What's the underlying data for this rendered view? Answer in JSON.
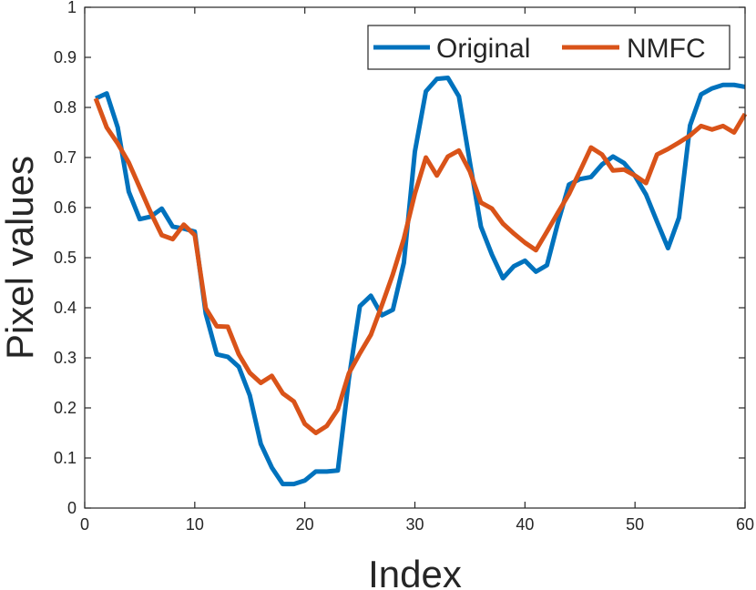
{
  "chart_data": {
    "type": "line",
    "title": "",
    "xlabel": "Index",
    "ylabel": "Pixel values",
    "xlim": [
      0,
      60
    ],
    "ylim": [
      0,
      1
    ],
    "xticks": [
      "0",
      "10",
      "20",
      "30",
      "40",
      "50",
      "60"
    ],
    "yticks": [
      "0",
      "0.1",
      "0.2",
      "0.3",
      "0.4",
      "0.5",
      "0.6",
      "0.7",
      "0.8",
      "0.9",
      "1"
    ],
    "grid": false,
    "legend_position": "top-right",
    "x": [
      1,
      2,
      3,
      4,
      5,
      6,
      7,
      8,
      9,
      10,
      11,
      12,
      13,
      14,
      15,
      16,
      17,
      18,
      19,
      20,
      21,
      22,
      23,
      24,
      25,
      26,
      27,
      28,
      29,
      30,
      31,
      32,
      33,
      34,
      35,
      36,
      37,
      38,
      39,
      40,
      41,
      42,
      43,
      44,
      45,
      46,
      47,
      48,
      49,
      50,
      51,
      52,
      53,
      54,
      55,
      56,
      57,
      58,
      59,
      60
    ],
    "series": [
      {
        "name": "Original",
        "color": "#0072BD",
        "values": [
          0.818,
          0.828,
          0.76,
          0.632,
          0.577,
          0.582,
          0.598,
          0.562,
          0.558,
          0.552,
          0.388,
          0.307,
          0.302,
          0.282,
          0.225,
          0.128,
          0.081,
          0.048,
          0.048,
          0.055,
          0.073,
          0.073,
          0.075,
          0.258,
          0.403,
          0.424,
          0.385,
          0.396,
          0.49,
          0.712,
          0.832,
          0.857,
          0.859,
          0.822,
          0.69,
          0.562,
          0.506,
          0.459,
          0.483,
          0.494,
          0.472,
          0.485,
          0.57,
          0.646,
          0.657,
          0.661,
          0.686,
          0.702,
          0.689,
          0.663,
          0.626,
          0.572,
          0.519,
          0.58,
          0.764,
          0.826,
          0.838,
          0.845,
          0.845,
          0.841
        ]
      },
      {
        "name": "NMFC",
        "color": "#D95319",
        "values": [
          0.818,
          0.76,
          0.728,
          0.69,
          0.64,
          0.59,
          0.545,
          0.537,
          0.566,
          0.545,
          0.399,
          0.363,
          0.362,
          0.307,
          0.27,
          0.25,
          0.264,
          0.229,
          0.213,
          0.168,
          0.15,
          0.164,
          0.197,
          0.269,
          0.309,
          0.346,
          0.405,
          0.467,
          0.538,
          0.628,
          0.7,
          0.664,
          0.702,
          0.714,
          0.672,
          0.61,
          0.598,
          0.568,
          0.548,
          0.53,
          0.515,
          0.552,
          0.59,
          0.627,
          0.673,
          0.72,
          0.706,
          0.674,
          0.676,
          0.664,
          0.649,
          0.706,
          0.717,
          0.73,
          0.744,
          0.763,
          0.756,
          0.763,
          0.75,
          0.787
        ]
      }
    ]
  }
}
